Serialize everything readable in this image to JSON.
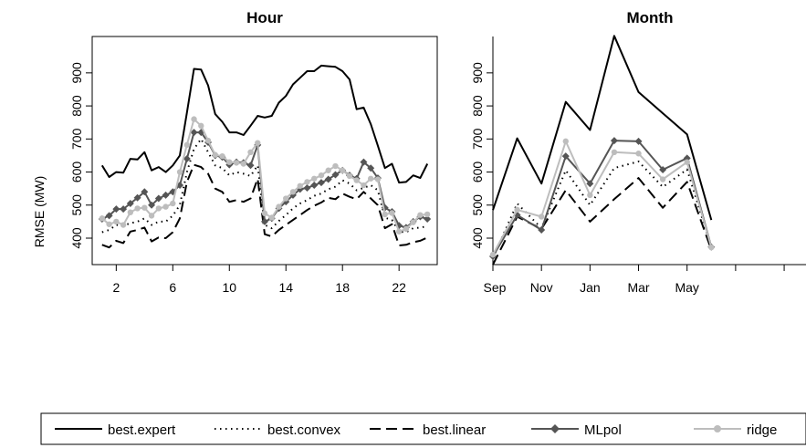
{
  "ylabel": "RMSE (MW)",
  "legend": {
    "items": [
      {
        "key": "best_expert",
        "label": "best.expert"
      },
      {
        "key": "best_convex",
        "label": "best.convex"
      },
      {
        "key": "best_linear",
        "label": "best.linear"
      },
      {
        "key": "mlpol",
        "label": "MLpol"
      },
      {
        "key": "ridge",
        "label": "ridge"
      }
    ]
  },
  "chart_data": [
    {
      "type": "line",
      "title": "Hour",
      "ylabel": "RMSE (MW)",
      "xlim": [
        0.3,
        24.7
      ],
      "ylim": [
        320,
        1010
      ],
      "xticks": [
        2,
        6,
        10,
        14,
        18,
        22
      ],
      "yticks": [
        400,
        500,
        600,
        700,
        800,
        900
      ],
      "x": [
        1,
        1.5,
        2,
        2.5,
        3,
        3.5,
        4,
        4.5,
        5,
        5.5,
        6,
        6.5,
        7,
        7.5,
        8,
        8.5,
        9,
        9.5,
        10,
        10.5,
        11,
        11.5,
        12,
        12.5,
        13,
        13.5,
        14,
        14.5,
        15,
        15.5,
        16,
        16.5,
        17,
        17.5,
        18,
        18.5,
        19,
        19.5,
        20,
        20.5,
        21,
        21.5,
        22,
        22.5,
        23,
        23.5,
        24
      ],
      "series": [
        {
          "key": "best_expert",
          "name": "best.expert",
          "color": "#000000",
          "dash": "",
          "width": 2,
          "marker": false,
          "values": [
            620,
            585,
            600,
            598,
            640,
            638,
            660,
            605,
            615,
            600,
            620,
            650,
            780,
            912,
            910,
            862,
            775,
            752,
            720,
            720,
            712,
            740,
            770,
            765,
            770,
            810,
            830,
            865,
            885,
            905,
            905,
            922,
            920,
            918,
            905,
            880,
            790,
            795,
            745,
            680,
            612,
            625,
            568,
            570,
            590,
            582,
            625
          ]
        },
        {
          "key": "best_convex",
          "name": "best.convex",
          "color": "#000000",
          "dash": "1.5,4.5",
          "width": 2,
          "marker": false,
          "values": [
            418,
            425,
            440,
            438,
            445,
            450,
            460,
            440,
            450,
            450,
            468,
            500,
            600,
            670,
            700,
            660,
            620,
            612,
            590,
            600,
            595,
            588,
            620,
            440,
            430,
            452,
            470,
            490,
            505,
            515,
            528,
            535,
            548,
            556,
            575,
            565,
            545,
            552,
            560,
            545,
            462,
            455,
            420,
            418,
            430,
            432,
            436
          ]
        },
        {
          "key": "best_linear",
          "name": "best.linear",
          "color": "#000000",
          "dash": "12,6",
          "width": 2,
          "marker": false,
          "values": [
            380,
            372,
            392,
            385,
            420,
            425,
            432,
            390,
            402,
            400,
            418,
            460,
            570,
            622,
            615,
            595,
            550,
            540,
            510,
            515,
            510,
            520,
            580,
            412,
            405,
            425,
            440,
            455,
            470,
            485,
            498,
            508,
            522,
            518,
            535,
            525,
            518,
            540,
            520,
            500,
            430,
            442,
            378,
            380,
            388,
            392,
            402
          ]
        },
        {
          "key": "mlpol",
          "name": "MLpol",
          "color": "#555555",
          "dash": "",
          "width": 2,
          "marker": "diamond",
          "values": [
            458,
            468,
            488,
            488,
            505,
            522,
            540,
            500,
            520,
            530,
            540,
            560,
            640,
            720,
            720,
            690,
            650,
            645,
            622,
            630,
            628,
            620,
            682,
            450,
            460,
            490,
            510,
            530,
            548,
            552,
            560,
            568,
            578,
            592,
            605,
            590,
            580,
            630,
            612,
            582,
            492,
            480,
            438,
            432,
            450,
            465,
            458
          ]
        },
        {
          "key": "ridge",
          "name": "ridge",
          "color": "#bdbdbd",
          "dash": "",
          "width": 2,
          "marker": "circle",
          "values": [
            460,
            442,
            450,
            440,
            478,
            490,
            492,
            468,
            490,
            495,
            505,
            600,
            682,
            760,
            740,
            695,
            652,
            648,
            630,
            628,
            625,
            660,
            688,
            475,
            462,
            495,
            520,
            540,
            558,
            570,
            580,
            590,
            605,
            618,
            605,
            588,
            575,
            560,
            580,
            578,
            472,
            476,
            420,
            428,
            448,
            470,
            472
          ]
        }
      ]
    },
    {
      "type": "line",
      "title": "Month",
      "xlim": [
        0,
        12.9
      ],
      "ylim": [
        320,
        1010
      ],
      "xticks": [
        0,
        2,
        4,
        6,
        8,
        10
      ],
      "xtick_labels": [
        "Sep",
        "Nov",
        "Jan",
        "Mar",
        "May"
      ],
      "xtick_label_at": [
        0,
        2,
        4,
        6,
        8
      ],
      "yticks": [
        400,
        500,
        600,
        700,
        800,
        900
      ],
      "x": [
        0,
        1,
        2,
        3,
        4,
        5,
        6,
        7,
        8,
        9
      ],
      "series": [
        {
          "key": "best_expert",
          "name": "best.expert",
          "color": "#000000",
          "dash": "",
          "width": 2,
          "marker": false,
          "values": [
            485,
            702,
            565,
            812,
            727,
            1012,
            842,
            778,
            714,
            455
          ]
        },
        {
          "key": "best_convex",
          "name": "best.convex",
          "color": "#000000",
          "dash": "1.5,4.5",
          "width": 2,
          "marker": false,
          "values": [
            340,
            505,
            430,
            605,
            500,
            612,
            632,
            555,
            608,
            372
          ]
        },
        {
          "key": "best_linear",
          "name": "best.linear",
          "color": "#000000",
          "dash": "12,6",
          "width": 2,
          "marker": false,
          "values": [
            320,
            465,
            428,
            545,
            450,
            518,
            582,
            492,
            570,
            365
          ]
        },
        {
          "key": "mlpol",
          "name": "MLpol",
          "color": "#555555",
          "dash": "",
          "width": 2,
          "marker": "diamond",
          "values": [
            345,
            470,
            425,
            648,
            565,
            695,
            693,
            607,
            642,
            373
          ]
        },
        {
          "key": "ridge",
          "name": "ridge",
          "color": "#bdbdbd",
          "dash": "",
          "width": 2,
          "marker": "circle",
          "values": [
            350,
            486,
            465,
            693,
            530,
            660,
            656,
            578,
            630,
            372
          ]
        }
      ]
    }
  ]
}
